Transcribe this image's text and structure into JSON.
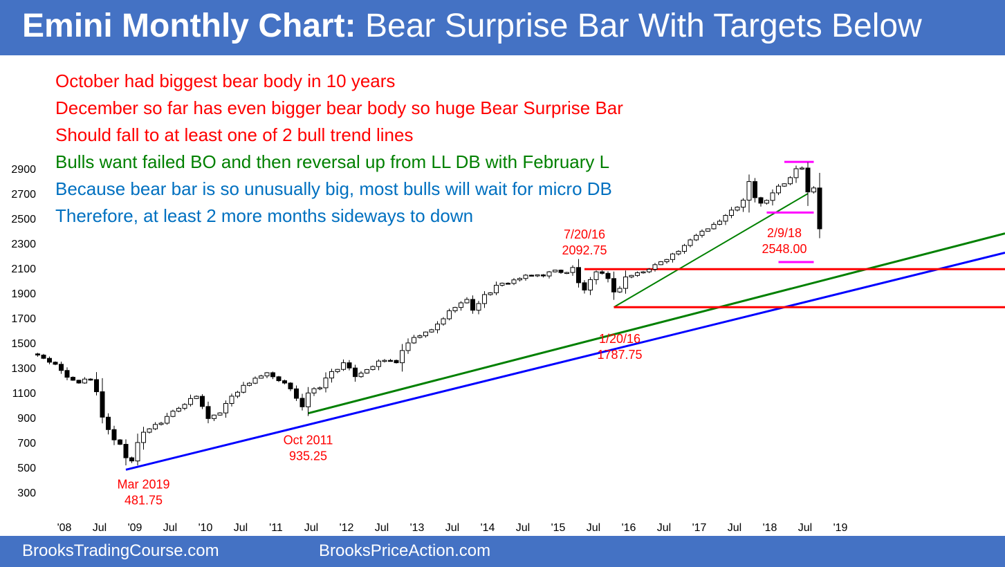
{
  "header": {
    "title_bold": "Emini Monthly Chart:",
    "title_rest": " Bear Surprise Bar With Targets Below"
  },
  "footer": {
    "left": "BrooksTradingCourse.com",
    "right": "BrooksPriceAction.com"
  },
  "colors": {
    "header_bg": "#4472c4",
    "red": "#ff0000",
    "green": "#008000",
    "blue": "#0000ff",
    "blue_text": "#0070c0",
    "magenta": "#ff00ff"
  },
  "notes": [
    {
      "text": "October had biggest bear body in 10 years",
      "color": "#ff0000"
    },
    {
      "text": "December so far has even bigger bear body so huge Bear Surprise Bar",
      "color": "#ff0000"
    },
    {
      "text": "Should fall to at least one of 2 bull trend lines",
      "color": "#ff0000"
    },
    {
      "text": "Bulls want failed BO and then reversal up from LL DB with February L",
      "color": "#008000"
    },
    {
      "text": "Because bear bar is so unusually big, most bulls will wait for micro DB",
      "color": "#0070c0"
    },
    {
      "text": "Therefore, at least 2 more months sideways to down",
      "color": "#0070c0"
    }
  ],
  "chart_data": {
    "type": "candlestick",
    "title": "Emini Monthly Chart: Bear Surprise Bar With Targets Below",
    "y_ticks": [
      300,
      500,
      700,
      900,
      1100,
      1300,
      1500,
      1700,
      1900,
      2100,
      2300,
      2500,
      2700,
      2900
    ],
    "ylim": [
      150,
      3100
    ],
    "x_ticks": [
      {
        "label": "'08",
        "index": 0
      },
      {
        "label": "Jul",
        "index": 6
      },
      {
        "label": "'09",
        "index": 12
      },
      {
        "label": "Jul",
        "index": 18
      },
      {
        "label": "'10",
        "index": 24
      },
      {
        "label": "Jul",
        "index": 30
      },
      {
        "label": "'11",
        "index": 36
      },
      {
        "label": "Jul",
        "index": 42
      },
      {
        "label": "'12",
        "index": 48
      },
      {
        "label": "Jul",
        "index": 54
      },
      {
        "label": "'13",
        "index": 60
      },
      {
        "label": "Jul",
        "index": 66
      },
      {
        "label": "'14",
        "index": 72
      },
      {
        "label": "Jul",
        "index": 78
      },
      {
        "label": "'15",
        "index": 84
      },
      {
        "label": "Jul",
        "index": 90
      },
      {
        "label": "'16",
        "index": 96
      },
      {
        "label": "Jul",
        "index": 102
      },
      {
        "label": "'17",
        "index": 108
      },
      {
        "label": "Jul",
        "index": 114
      },
      {
        "label": "'18",
        "index": 120
      },
      {
        "label": "Jul",
        "index": 126
      },
      {
        "label": "'19",
        "index": 132
      }
    ],
    "anchors": [
      [
        -2,
        1400
      ],
      [
        0,
        1380
      ],
      [
        2,
        1320
      ],
      [
        4,
        1220
      ],
      [
        6,
        1190
      ],
      [
        8,
        1200
      ],
      [
        9,
        1100
      ],
      [
        10,
        910
      ],
      [
        11,
        810
      ],
      [
        12,
        720
      ],
      [
        13,
        690
      ],
      [
        14,
        580
      ],
      [
        15,
        560
      ],
      [
        16,
        690
      ],
      [
        17,
        790
      ],
      [
        20,
        870
      ],
      [
        22,
        960
      ],
      [
        24,
        1010
      ],
      [
        26,
        1070
      ],
      [
        28,
        900
      ],
      [
        30,
        940
      ],
      [
        32,
        1080
      ],
      [
        34,
        1150
      ],
      [
        36,
        1220
      ],
      [
        38,
        1250
      ],
      [
        40,
        1190
      ],
      [
        42,
        1140
      ],
      [
        44,
        990
      ],
      [
        45,
        1090
      ],
      [
        47,
        1150
      ],
      [
        49,
        1270
      ],
      [
        51,
        1330
      ],
      [
        53,
        1240
      ],
      [
        56,
        1320
      ],
      [
        58,
        1360
      ],
      [
        60,
        1350
      ],
      [
        62,
        1500
      ],
      [
        64,
        1560
      ],
      [
        66,
        1600
      ],
      [
        68,
        1700
      ],
      [
        70,
        1800
      ],
      [
        72,
        1840
      ],
      [
        73,
        1770
      ],
      [
        75,
        1880
      ],
      [
        77,
        1950
      ],
      [
        79,
        1990
      ],
      [
        81,
        2020
      ],
      [
        83,
        2040
      ],
      [
        85,
        2050
      ],
      [
        87,
        2080
      ],
      [
        89,
        2070
      ],
      [
        90,
        2100
      ],
      [
        91,
        1980
      ],
      [
        92,
        1930
      ],
      [
        94,
        2060
      ],
      [
        96,
        2030
      ],
      [
        97,
        1900
      ],
      [
        98,
        1950
      ],
      [
        99,
        2030
      ],
      [
        101,
        2060
      ],
      [
        103,
        2090
      ],
      [
        105,
        2160
      ],
      [
        107,
        2210
      ],
      [
        109,
        2270
      ],
      [
        111,
        2370
      ],
      [
        113,
        2430
      ],
      [
        115,
        2480
      ],
      [
        117,
        2560
      ],
      [
        119,
        2640
      ],
      [
        120,
        2790
      ],
      [
        121,
        2660
      ],
      [
        122,
        2630
      ],
      [
        123,
        2640
      ],
      [
        124,
        2710
      ],
      [
        126,
        2780
      ],
      [
        128,
        2900
      ],
      [
        129,
        2920
      ],
      [
        130,
        2720
      ],
      [
        131,
        2750
      ],
      [
        132,
        2420
      ]
    ],
    "annotations": [
      {
        "lines": [
          "Mar 2019",
          "481.75"
        ],
        "x": 17,
        "y": 330
      },
      {
        "lines": [
          "Oct 2011",
          "935.25"
        ],
        "x": 45,
        "y": 685
      },
      {
        "lines": [
          "7/20/16",
          "2092.75"
        ],
        "x": 92,
        "y": 2340
      },
      {
        "lines": [
          "1/20/16",
          "1787.75"
        ],
        "x": 98,
        "y": 1500
      },
      {
        "lines": [
          "2/9/18",
          "2548.00"
        ],
        "x": 126,
        "y": 2350
      }
    ]
  }
}
